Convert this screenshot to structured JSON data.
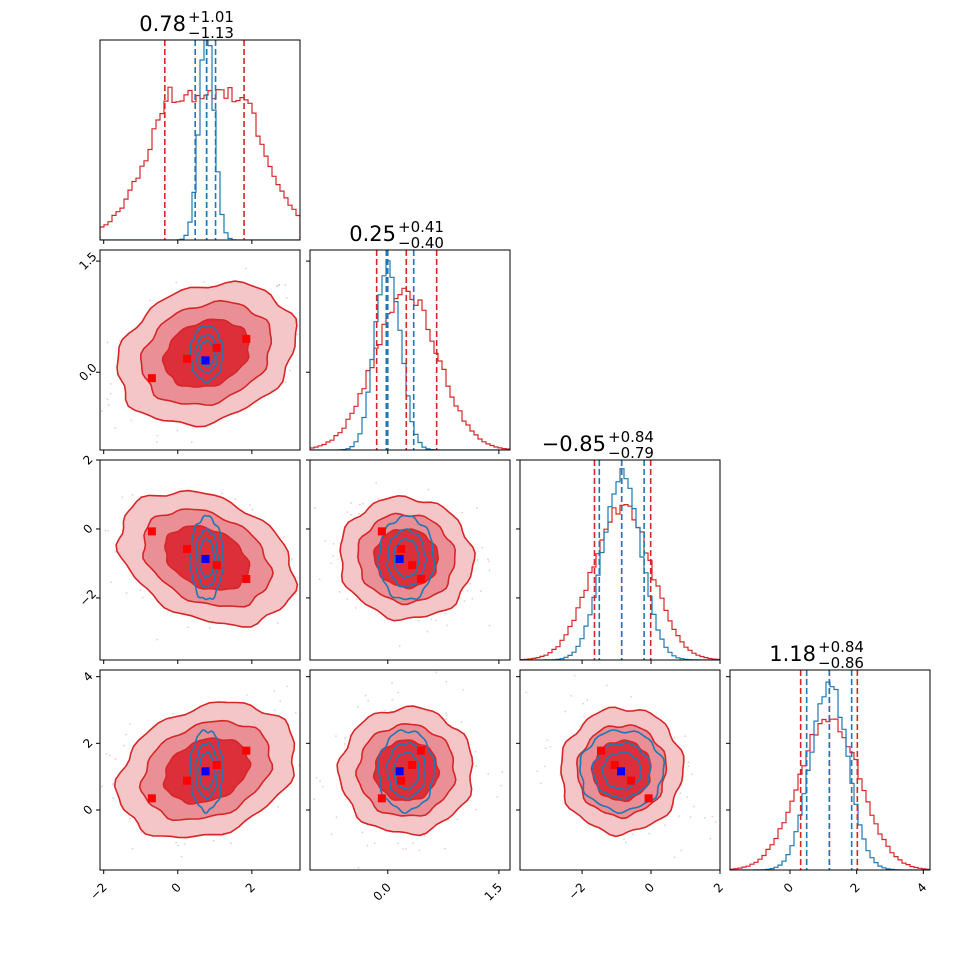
{
  "chart_data": {
    "type": "corner",
    "parameters": 4,
    "colors": {
      "red": "#d62728",
      "blue": "#1f77b4",
      "true_point": "#0000ff",
      "red_points": "#ff0000"
    },
    "titles": [
      {
        "median": "0.78",
        "plus": "+1.01",
        "minus": "−1.13"
      },
      {
        "median": "0.25",
        "plus": "+0.41",
        "minus": "−0.40"
      },
      {
        "median": "−0.85",
        "plus": "+0.84",
        "minus": "−0.79"
      },
      {
        "median": "1.18",
        "plus": "+0.84",
        "minus": "−0.86"
      }
    ],
    "ranges": [
      [
        -2.1,
        3.3
      ],
      [
        -1.05,
        1.65
      ],
      [
        -3.8,
        2.0
      ],
      [
        -1.8,
        4.2
      ]
    ],
    "x_tick_labels": [
      [
        "−2",
        "0",
        "2"
      ],
      [
        "0.0",
        "1.5"
      ],
      [
        "−2",
        "0",
        "2"
      ],
      [
        "0",
        "2",
        "4"
      ]
    ],
    "x_ticks": [
      [
        -2,
        0,
        2
      ],
      [
        0.0,
        1.5
      ],
      [
        -2,
        0,
        2
      ],
      [
        0,
        2,
        4
      ]
    ],
    "y_tick_labels": {
      "row1": [
        "0.0",
        "1.5"
      ],
      "row2": [
        "−2",
        "0",
        "2"
      ],
      "row3": [
        "0",
        "2",
        "4"
      ]
    },
    "y_ticks": {
      "row1": [
        0.0,
        1.5
      ],
      "row2": [
        -2,
        0,
        2
      ],
      "row3": [
        0,
        2,
        4
      ]
    },
    "quantiles_red": [
      [
        -0.35,
        0.78,
        1.79
      ],
      [
        -0.15,
        0.25,
        0.66
      ],
      [
        -1.64,
        -0.85,
        -0.01
      ],
      [
        0.32,
        1.18,
        2.02
      ]
    ],
    "quantiles_blue": [
      [
        0.47,
        0.78,
        1.02
      ],
      [
        -0.02,
        0.0,
        0.35
      ],
      [
        -1.5,
        -0.85,
        -0.2
      ],
      [
        0.5,
        1.18,
        1.85
      ]
    ],
    "red_sigma": [
      1.13,
      0.41,
      0.8,
      0.86
    ],
    "blue_sigma": [
      0.2,
      0.17,
      0.55,
      0.55
    ],
    "red_points": [
      [
        -0.7,
        -0.08,
        -0.07,
        0.35
      ],
      [
        0.25,
        0.18,
        -0.58,
        0.88
      ],
      [
        1.05,
        0.33,
        -1.05,
        1.35
      ],
      [
        1.85,
        0.45,
        -1.45,
        1.78
      ]
    ],
    "true_point": [
      0.75,
      0.16,
      -0.87,
      1.16
    ]
  }
}
